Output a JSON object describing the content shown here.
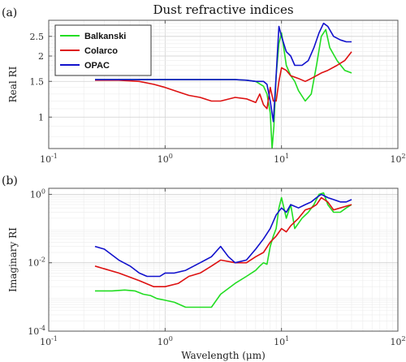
{
  "colors": {
    "Balkanski": "#22dd22",
    "Colarco": "#dd1111",
    "OPAC": "#1111cc"
  },
  "chart_data": [
    {
      "type": "line",
      "panel": "(a)",
      "title": "Dust refractive indices",
      "xlabel": "",
      "ylabel": "Real RI",
      "xscale": "log",
      "yscale": "log",
      "xlim": [
        0.1,
        100
      ],
      "ylim": [
        0.7,
        3.0
      ],
      "xticks": [
        0.1,
        1,
        10,
        100
      ],
      "xtick_labels": [
        {
          "base": "10",
          "exp": "-1"
        },
        {
          "base": "10",
          "exp": "0"
        },
        {
          "base": "10",
          "exp": "1"
        },
        {
          "base": "10",
          "exp": "2"
        }
      ],
      "yticks": [
        1,
        1.5,
        2,
        2.5
      ],
      "ytick_labels": [
        "1",
        "1.5",
        "2",
        "2.5"
      ],
      "grid": true,
      "legend": {
        "placement": "top-left",
        "entries": [
          "Balkanski",
          "Colarco",
          "OPAC"
        ]
      },
      "series": [
        {
          "name": "Balkanski",
          "x": [
            0.25,
            0.5,
            1,
            2,
            3,
            4,
            5,
            6,
            7,
            7.5,
            8,
            8.3,
            8.6,
            9,
            9.5,
            10,
            11,
            12,
            13,
            14,
            16,
            18,
            20,
            22,
            24,
            26,
            30,
            35,
            40
          ],
          "y": [
            1.53,
            1.53,
            1.53,
            1.53,
            1.53,
            1.53,
            1.52,
            1.5,
            1.42,
            1.3,
            1.05,
            0.7,
            0.9,
            1.6,
            2.3,
            2.6,
            1.8,
            1.6,
            1.5,
            1.35,
            1.2,
            1.3,
            1.8,
            2.5,
            2.7,
            2.2,
            1.9,
            1.7,
            1.65
          ]
        },
        {
          "name": "Colarco",
          "x": [
            0.25,
            0.4,
            0.6,
            0.8,
            1,
            1.3,
            1.6,
            2,
            2.5,
            3,
            4,
            5,
            6,
            6.5,
            7,
            7.5,
            8,
            8.5,
            9,
            9.5,
            10,
            11,
            12,
            14,
            16,
            18,
            20,
            22,
            25,
            30,
            35,
            40
          ],
          "y": [
            1.52,
            1.52,
            1.5,
            1.45,
            1.4,
            1.33,
            1.28,
            1.25,
            1.2,
            1.2,
            1.25,
            1.23,
            1.18,
            1.3,
            1.15,
            1.1,
            1.4,
            1.2,
            1.2,
            1.5,
            1.75,
            1.7,
            1.6,
            1.55,
            1.5,
            1.55,
            1.6,
            1.65,
            1.7,
            1.8,
            1.9,
            2.1
          ]
        },
        {
          "name": "OPAC",
          "x": [
            0.25,
            0.5,
            1,
            2,
            3,
            4,
            5,
            6,
            7,
            7.5,
            8,
            8.5,
            9,
            9.5,
            10,
            11,
            12,
            13,
            15,
            17,
            19,
            21,
            23,
            25,
            28,
            32,
            36,
            40
          ],
          "y": [
            1.53,
            1.53,
            1.53,
            1.53,
            1.53,
            1.53,
            1.52,
            1.5,
            1.5,
            1.45,
            1.2,
            0.95,
            1.6,
            2.8,
            2.5,
            2.1,
            2.0,
            1.8,
            1.8,
            1.9,
            2.2,
            2.6,
            2.9,
            2.8,
            2.5,
            2.4,
            2.35,
            2.35
          ]
        }
      ]
    },
    {
      "type": "line",
      "panel": "(b)",
      "title": "",
      "xlabel": "Wavelength (μm)",
      "ylabel": "Imaginary RI",
      "xscale": "log",
      "yscale": "log",
      "xlim": [
        0.1,
        100
      ],
      "ylim": [
        0.0001,
        1.5
      ],
      "xticks": [
        0.1,
        1,
        10,
        100
      ],
      "xtick_labels": [
        {
          "base": "10",
          "exp": "-1"
        },
        {
          "base": "10",
          "exp": "0"
        },
        {
          "base": "10",
          "exp": "1"
        },
        {
          "base": "10",
          "exp": "2"
        }
      ],
      "yticks": [
        0.0001,
        0.01,
        1
      ],
      "ytick_labels": [
        {
          "base": "10",
          "exp": "-4"
        },
        {
          "base": "10",
          "exp": "-2"
        },
        {
          "base": "10",
          "exp": "0"
        }
      ],
      "grid": true,
      "legend": null,
      "series": [
        {
          "name": "Balkanski",
          "x": [
            0.25,
            0.35,
            0.45,
            0.55,
            0.65,
            0.75,
            0.85,
            1.0,
            1.2,
            1.5,
            2.0,
            2.5,
            3.0,
            4.0,
            5.0,
            6.0,
            6.5,
            7.0,
            7.5,
            8.0,
            8.5,
            9.0,
            9.5,
            10,
            11,
            12,
            13,
            15,
            17,
            19,
            21,
            23,
            25,
            28,
            32,
            36,
            40
          ],
          "y": [
            0.0015,
            0.0015,
            0.0016,
            0.0015,
            0.0012,
            0.0011,
            0.0009,
            0.0008,
            0.0007,
            0.0005,
            0.0005,
            0.0005,
            0.0012,
            0.0025,
            0.004,
            0.006,
            0.008,
            0.01,
            0.009,
            0.03,
            0.06,
            0.1,
            0.4,
            0.8,
            0.2,
            0.5,
            0.1,
            0.2,
            0.3,
            0.5,
            1.0,
            1.1,
            0.5,
            0.3,
            0.3,
            0.4,
            0.5
          ]
        },
        {
          "name": "Colarco",
          "x": [
            0.25,
            0.4,
            0.6,
            0.8,
            1.0,
            1.3,
            1.6,
            2.0,
            2.5,
            3.0,
            4.0,
            5.0,
            6.0,
            7.0,
            8.0,
            9.0,
            10,
            11,
            12,
            14,
            16,
            18,
            20,
            22,
            25,
            28,
            32,
            36,
            40
          ],
          "y": [
            0.008,
            0.005,
            0.003,
            0.002,
            0.002,
            0.0025,
            0.004,
            0.005,
            0.008,
            0.012,
            0.01,
            0.01,
            0.015,
            0.02,
            0.04,
            0.06,
            0.1,
            0.08,
            0.12,
            0.2,
            0.35,
            0.4,
            0.5,
            0.8,
            0.6,
            0.35,
            0.4,
            0.45,
            0.5
          ]
        },
        {
          "name": "OPAC",
          "x": [
            0.25,
            0.3,
            0.4,
            0.5,
            0.6,
            0.7,
            0.8,
            0.9,
            1.0,
            1.2,
            1.5,
            2.0,
            2.5,
            3.0,
            3.5,
            4.0,
            5.0,
            6.0,
            7.0,
            8.0,
            9.0,
            10,
            11,
            12,
            14,
            16,
            18,
            20,
            22,
            25,
            28,
            32,
            36,
            40
          ],
          "y": [
            0.03,
            0.025,
            0.012,
            0.008,
            0.005,
            0.004,
            0.004,
            0.004,
            0.005,
            0.005,
            0.006,
            0.01,
            0.015,
            0.03,
            0.015,
            0.01,
            0.012,
            0.025,
            0.05,
            0.1,
            0.25,
            0.4,
            0.3,
            0.5,
            0.4,
            0.5,
            0.6,
            0.8,
            1.0,
            0.8,
            0.7,
            0.6,
            0.6,
            0.7
          ]
        }
      ]
    }
  ]
}
